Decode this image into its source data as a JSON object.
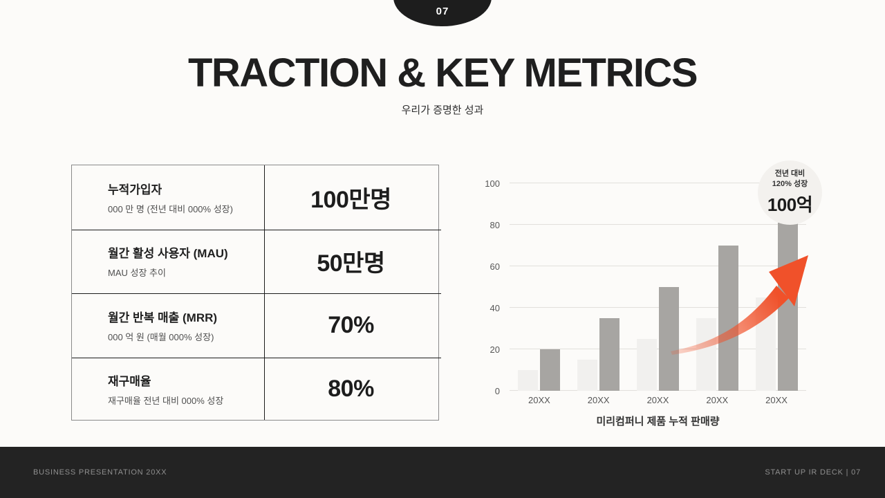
{
  "slide": {
    "page_badge": "07",
    "title": "TRACTION & KEY METRICS",
    "subtitle": "우리가 증명한 성과"
  },
  "metrics_table": {
    "rows": [
      {
        "label": "누적가입자",
        "sublabel": "000 만 명 (전년 대비 000% 성장)",
        "value": "100만명"
      },
      {
        "label": "월간 활성 사용자 (MAU)",
        "sublabel": "MAU 성장 추이",
        "value": "50만명"
      },
      {
        "label": "월간 반복 매출 (MRR)",
        "sublabel": "000 억 원 (매월 000% 성장)",
        "value": "70%"
      },
      {
        "label": "재구매율",
        "sublabel": "재구매율 전년 대비 000% 성장",
        "value": "80%"
      }
    ]
  },
  "chart_data": {
    "type": "bar",
    "title": "미리컴퍼니 제품 누적 판매량",
    "categories": [
      "20XX",
      "20XX",
      "20XX",
      "20XX",
      "20XX"
    ],
    "series": [
      {
        "name": "secondary",
        "color": "#f1f0ee",
        "values": [
          10,
          15,
          25,
          35,
          45
        ]
      },
      {
        "name": "primary",
        "color": "#a7a5a2",
        "values": [
          20,
          35,
          50,
          70,
          81
        ]
      }
    ],
    "ylim": [
      0,
      100
    ],
    "yticks": [
      0,
      20,
      40,
      60,
      80,
      100
    ],
    "grid": true,
    "legend": "none",
    "arrow_color": "#f0512a",
    "annotation": {
      "line1": "전년 대비",
      "line2": "120% 성장",
      "value": "100억"
    }
  },
  "footer": {
    "left": "BUSINESS PRESENTATION 20XX",
    "right": "START UP IR DECK  |  07"
  }
}
